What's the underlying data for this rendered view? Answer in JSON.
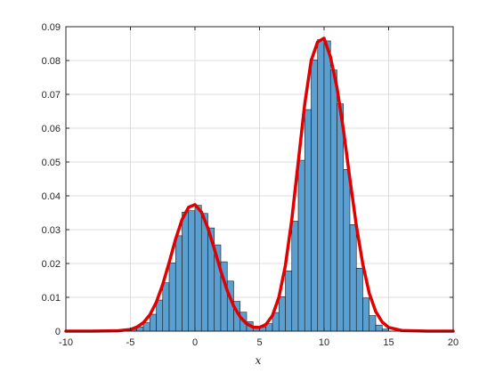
{
  "chart_data": {
    "type": "bar",
    "title": "",
    "xlabel": "x",
    "ylabel": "",
    "xlim": [
      -10,
      20
    ],
    "ylim": [
      0,
      0.09
    ],
    "grid": true,
    "x_ticks": [
      -10,
      -5,
      0,
      5,
      10,
      15,
      20
    ],
    "y_ticks": [
      0,
      0.01,
      0.02,
      0.03,
      0.04,
      0.05,
      0.06,
      0.07,
      0.08,
      0.09
    ],
    "x_tick_labels": [
      "-10",
      "-5",
      "0",
      "5",
      "10",
      "15",
      "20"
    ],
    "y_tick_labels": [
      "0",
      "0.01",
      "0.02",
      "0.03",
      "0.04",
      "0.05",
      "0.06",
      "0.07",
      "0.08",
      "0.09"
    ],
    "histogram": {
      "bin_edges": [
        -5.0,
        -4.5,
        -4.0,
        -3.5,
        -3.0,
        -2.5,
        -2.0,
        -1.5,
        -1.0,
        -0.5,
        0.0,
        0.5,
        1.0,
        1.5,
        2.0,
        2.5,
        3.0,
        3.5,
        4.0,
        4.5,
        5.0,
        5.5,
        6.0,
        6.5,
        7.0,
        7.5,
        8.0,
        8.5,
        9.0,
        9.5,
        10.0,
        10.5,
        11.0,
        11.5,
        12.0,
        12.5,
        13.0,
        13.5,
        14.0,
        14.5,
        15.0
      ],
      "values": [
        0.0005,
        0.0012,
        0.0025,
        0.005,
        0.0092,
        0.0143,
        0.0202,
        0.0282,
        0.0352,
        0.0356,
        0.0372,
        0.0348,
        0.0305,
        0.0255,
        0.0205,
        0.0148,
        0.0088,
        0.0056,
        0.0028,
        0.0014,
        0.0012,
        0.0022,
        0.0055,
        0.0102,
        0.0178,
        0.0325,
        0.0505,
        0.0655,
        0.0802,
        0.0862,
        0.0858,
        0.0772,
        0.0672,
        0.0478,
        0.0315,
        0.0186,
        0.0098,
        0.0046,
        0.0018,
        0.0006
      ],
      "face_color": "#5a9fd0",
      "edge_color": "#1a1a1a"
    },
    "series": [
      {
        "type": "line",
        "description": "fitted two-component Gaussian mixture PDF",
        "color": "#e00000",
        "x": [
          -10,
          -8,
          -6,
          -5,
          -4.5,
          -4,
          -3.5,
          -3,
          -2.5,
          -2,
          -1.5,
          -1,
          -0.5,
          0,
          0.5,
          1,
          1.5,
          2,
          2.5,
          3,
          3.5,
          4,
          4.5,
          5,
          5.5,
          6,
          6.5,
          7,
          7.5,
          8,
          8.5,
          9,
          9.5,
          10,
          10.5,
          11,
          11.5,
          12,
          12.5,
          13,
          13.5,
          14,
          14.5,
          15,
          16,
          18,
          20
        ],
        "y": [
          0,
          0,
          0.0001,
          0.0005,
          0.0012,
          0.0025,
          0.0048,
          0.0085,
          0.0138,
          0.0203,
          0.0272,
          0.033,
          0.0366,
          0.0374,
          0.0352,
          0.0305,
          0.0243,
          0.0178,
          0.012,
          0.0074,
          0.0042,
          0.0022,
          0.0012,
          0.0011,
          0.002,
          0.0046,
          0.01,
          0.0193,
          0.033,
          0.05,
          0.0671,
          0.08,
          0.0855,
          0.0866,
          0.081,
          0.072,
          0.0595,
          0.045,
          0.0312,
          0.0198,
          0.0112,
          0.0058,
          0.0027,
          0.0011,
          0.0002,
          0,
          0
        ]
      }
    ]
  }
}
